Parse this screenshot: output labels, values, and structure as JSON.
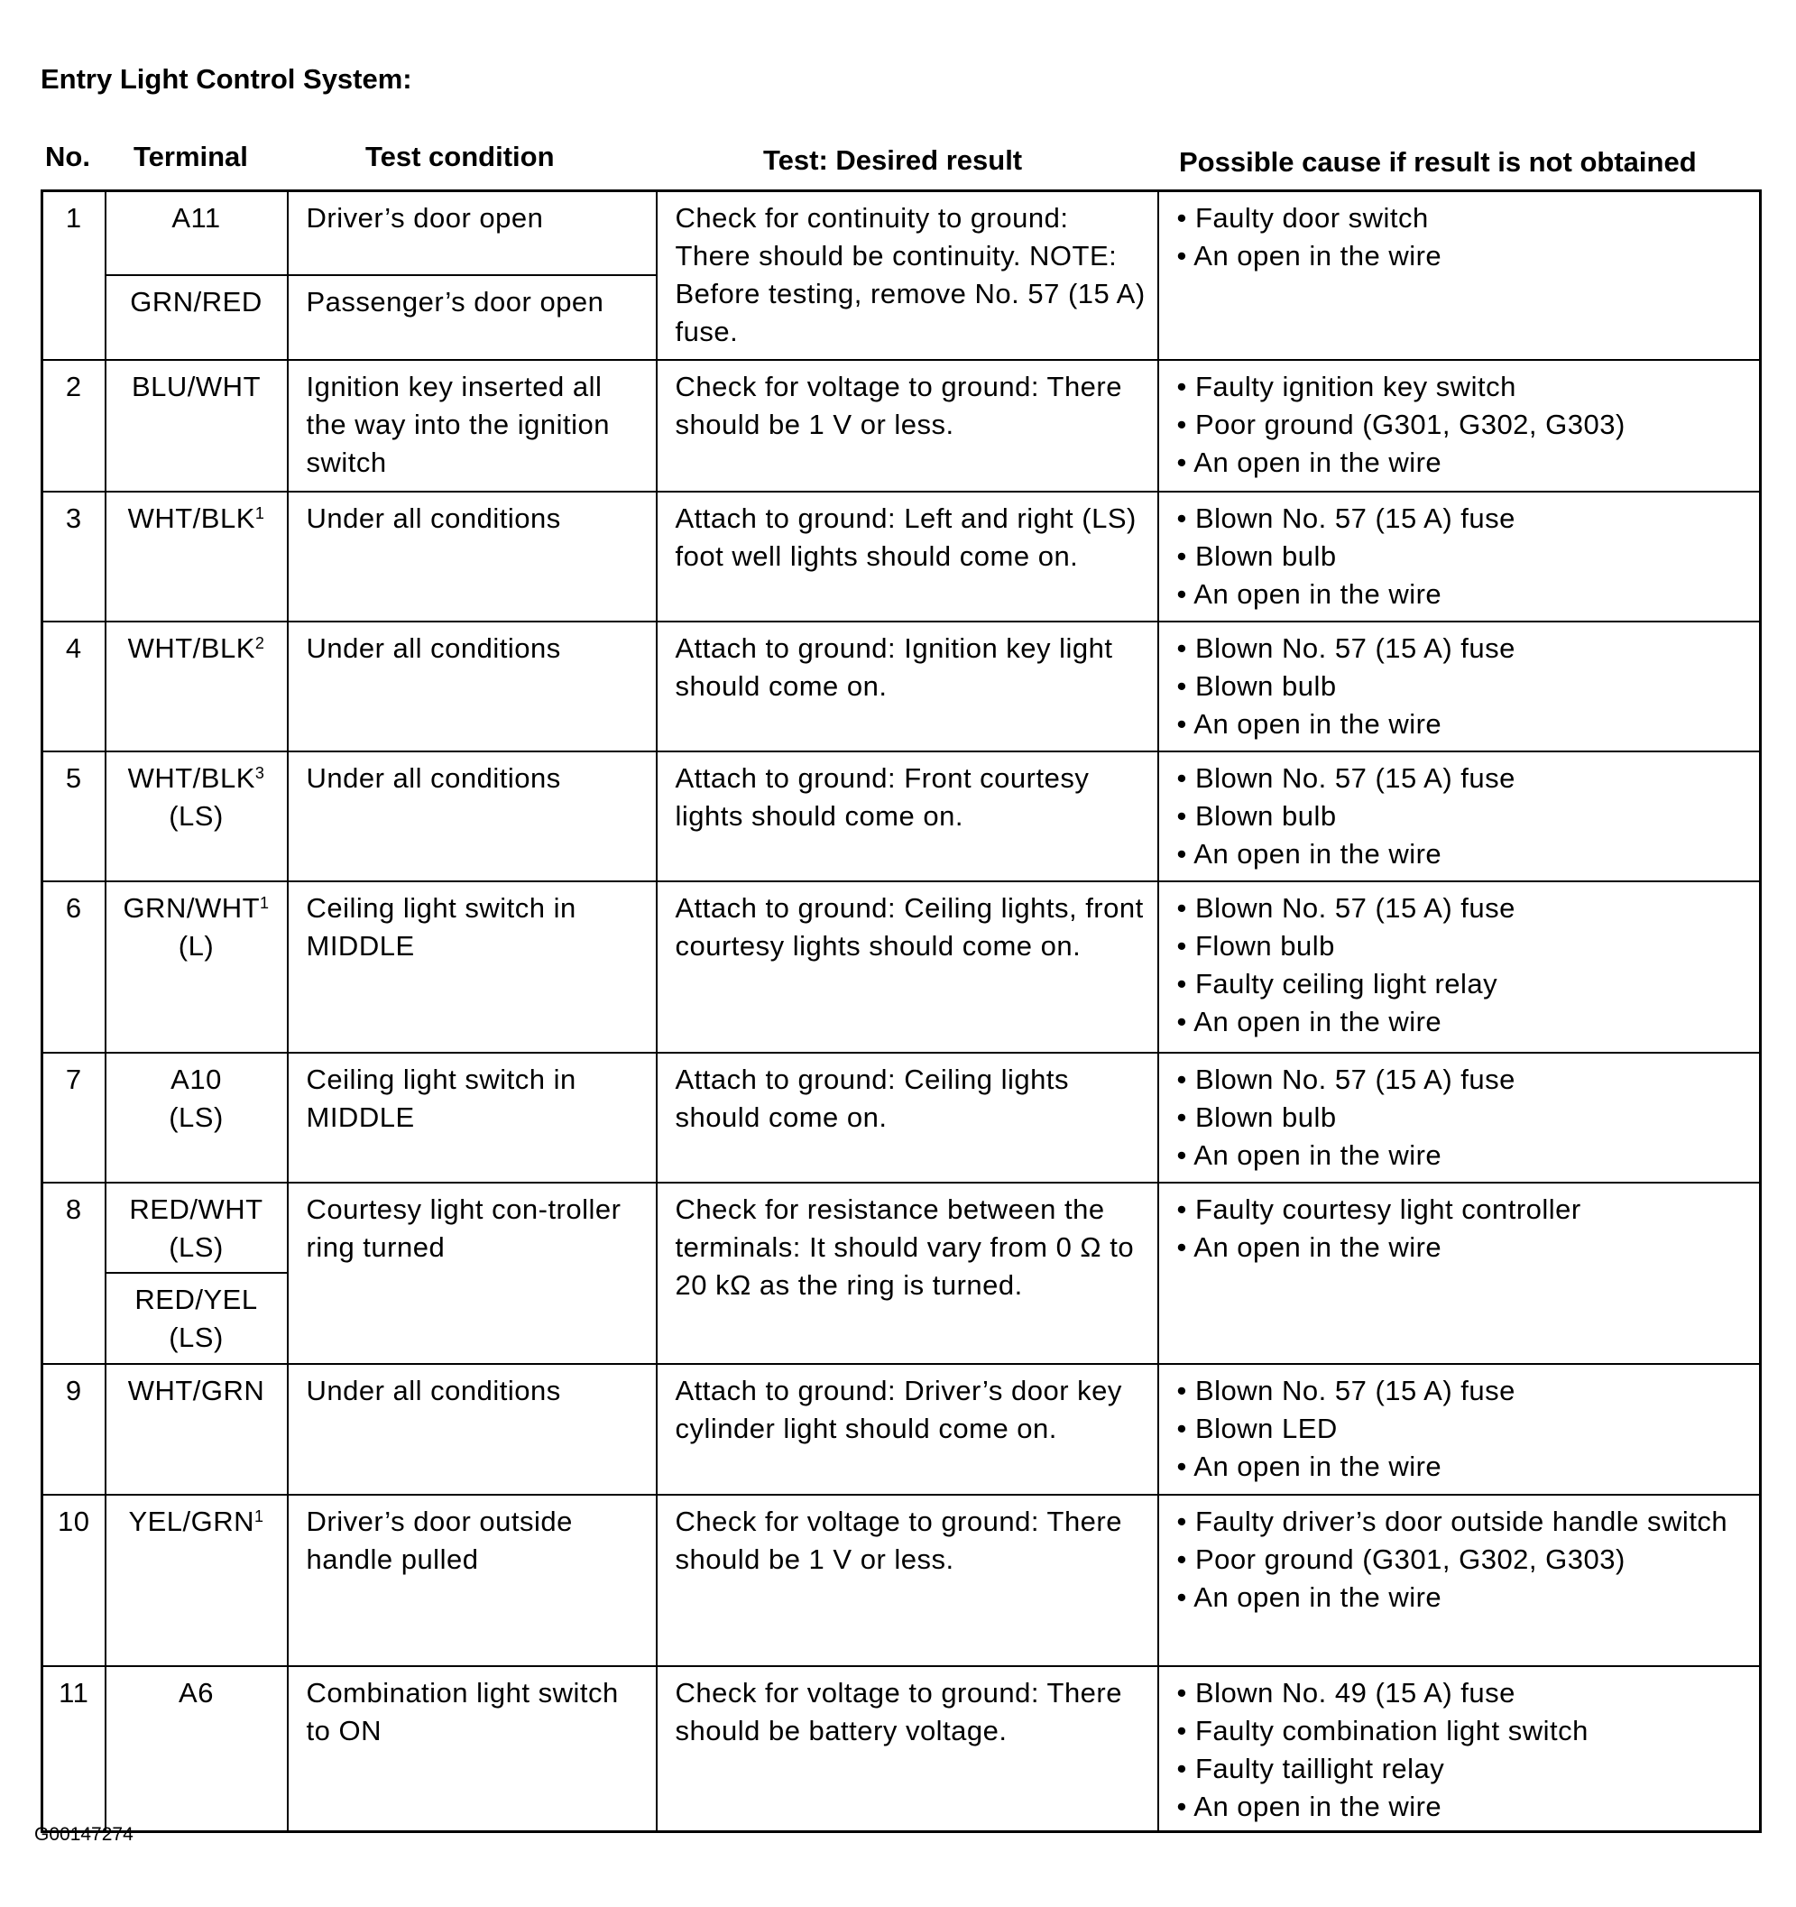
{
  "title": "Entry Light Control System:",
  "headers": {
    "no": "No.",
    "terminal": "Terminal",
    "condition": "Test condition",
    "result": "Test: Desired result",
    "cause": "Possible cause if result is not obtained"
  },
  "rows": [
    {
      "no": "1",
      "terminals": [
        {
          "name": "A11",
          "sup": ""
        },
        {
          "name": "GRN/RED",
          "sup": ""
        }
      ],
      "conditions": [
        "Driver’s door open",
        "Passenger’s door open"
      ],
      "result": "Check for continuity to ground: There should be continuity. NOTE: Before testing, remove No. 57 (15 A) fuse.",
      "causes": [
        "Faulty door switch",
        "An open in the wire"
      ]
    },
    {
      "no": "2",
      "terminals": [
        {
          "name": "BLU/WHT",
          "sup": ""
        }
      ],
      "conditions": [
        "Ignition key inserted all the way into the ignition switch"
      ],
      "result": "Check for voltage to ground: There should be 1 V or less.",
      "causes": [
        "Faulty ignition key switch",
        "Poor ground (G301, G302, G303)",
        "An open in the wire"
      ]
    },
    {
      "no": "3",
      "terminals": [
        {
          "name": "WHT/BLK",
          "sup": "1"
        }
      ],
      "conditions": [
        "Under all conditions"
      ],
      "result": "Attach to ground: Left and right (LS) foot well lights should come on.",
      "causes": [
        "Blown No. 57 (15 A) fuse",
        "Blown bulb",
        "An open in the wire"
      ]
    },
    {
      "no": "4",
      "terminals": [
        {
          "name": "WHT/BLK",
          "sup": "2"
        }
      ],
      "conditions": [
        "Under all conditions"
      ],
      "result": "Attach to ground: Ignition key light should come on.",
      "causes": [
        "Blown No. 57 (15 A) fuse",
        "Blown bulb",
        "An open in the wire"
      ]
    },
    {
      "no": "5",
      "terminals": [
        {
          "name": "WHT/BLK",
          "sup": "3",
          "sub": "(LS)"
        }
      ],
      "conditions": [
        "Under all conditions"
      ],
      "result": "Attach to ground: Front courtesy lights should come on.",
      "causes": [
        "Blown No. 57 (15 A) fuse",
        "Blown bulb",
        "An open in the wire"
      ]
    },
    {
      "no": "6",
      "terminals": [
        {
          "name": "GRN/WHT",
          "sup": "1",
          "sub": "(L)"
        }
      ],
      "conditions": [
        "Ceiling light switch in MIDDLE"
      ],
      "result": "Attach to ground: Ceiling lights, front courtesy lights should come on.",
      "causes": [
        "Blown No. 57 (15 A) fuse",
        "Flown bulb",
        "Faulty ceiling light relay",
        "An open in the wire"
      ]
    },
    {
      "no": "7",
      "terminals": [
        {
          "name": "A10",
          "sup": "",
          "sub": "(LS)"
        }
      ],
      "conditions": [
        "Ceiling light switch in MIDDLE"
      ],
      "result": "Attach to ground: Ceiling lights should come on.",
      "causes": [
        "Blown No. 57 (15 A) fuse",
        "Blown bulb",
        "An open in the wire"
      ]
    },
    {
      "no": "8",
      "terminals": [
        {
          "name": "RED/WHT",
          "sup": "",
          "sub": "(LS)"
        },
        {
          "name": "RED/YEL",
          "sup": "",
          "sub": "(LS)"
        }
      ],
      "conditions": [
        "Courtesy light con-troller ring turned"
      ],
      "result": "Check for resistance between the terminals: It should vary from 0 Ω to 20 kΩ as the ring is turned.",
      "causes": [
        "Faulty courtesy light controller",
        "An open in the wire"
      ]
    },
    {
      "no": "9",
      "terminals": [
        {
          "name": "WHT/GRN",
          "sup": ""
        }
      ],
      "conditions": [
        "Under all conditions"
      ],
      "result": "Attach to ground: Driver’s door key cylinder light should come on.",
      "causes": [
        "Blown No. 57 (15 A) fuse",
        "Blown LED",
        "An open in the wire"
      ]
    },
    {
      "no": "10",
      "terminals": [
        {
          "name": "YEL/GRN",
          "sup": "1"
        }
      ],
      "conditions": [
        "Driver’s door outside handle pulled"
      ],
      "result": "Check for voltage to ground: There should be 1 V or less.",
      "causes": [
        "Faulty driver’s door outside handle switch",
        "Poor ground (G301, G302, G303)",
        "An open in the wire"
      ]
    },
    {
      "no": "11",
      "terminals": [
        {
          "name": "A6",
          "sup": ""
        }
      ],
      "conditions": [
        "Combination light switch to ON"
      ],
      "result": "Check for voltage to ground: There should be battery voltage.",
      "causes": [
        "Blown No. 49 (15 A) fuse",
        "Faulty combination light switch",
        "Faulty taillight relay",
        "An open in the wire"
      ]
    }
  ],
  "figure_code": "G00147274"
}
